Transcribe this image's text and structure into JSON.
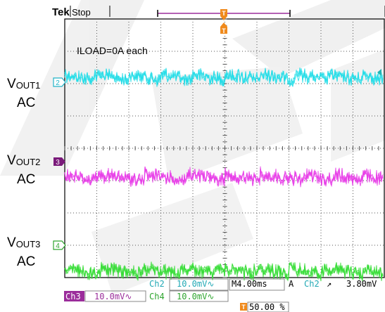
{
  "header": {
    "brand": "Tek",
    "run_state": "Stop"
  },
  "annotation": "ILOAD=0A each",
  "trigger": {
    "marker_glyph": "T",
    "color": "#f08a1c"
  },
  "channels": [
    {
      "id": "2",
      "label_main": "V",
      "label_sub": "OUT1",
      "label_coupling": "AC",
      "color": "#22dde8"
    },
    {
      "id": "3",
      "label_main": "V",
      "label_sub": "OUT2",
      "label_coupling": "AC",
      "color": "#e83ce8"
    },
    {
      "id": "4",
      "label_main": "V",
      "label_sub": "OUT3",
      "label_coupling": "AC",
      "color": "#36dd36"
    }
  ],
  "readouts": {
    "ch2_name": "Ch2",
    "ch2_scale": "10.0mV∿",
    "timebase": "M4.00ms",
    "acq_mode": "A",
    "trig_source": "Ch2",
    "trig_slope": "↗",
    "trig_level": "3.80mV",
    "ch3_name": "Ch3",
    "ch3_scale": "10.0mV∿",
    "ch4_name": "Ch4",
    "ch4_scale": "10.0mV∿",
    "trig_position": "50.00 %"
  },
  "chart_data": {
    "type": "line",
    "title": "",
    "x_divisions": 10,
    "y_divisions": 8,
    "x_per_div": "4.00ms",
    "y_per_div": "10.0mV",
    "grid": true,
    "series": [
      {
        "name": "Ch2",
        "step_divs": [
          0,
          0.9,
          2.0,
          3.0,
          4.0,
          5.0,
          6.1,
          7.2,
          8.2,
          9.3
        ],
        "level_div": 2.2
      },
      {
        "name": "Ch3",
        "step_divs": [
          0,
          0.9,
          2.5,
          3.8,
          5.0,
          6.1,
          7.5,
          8.4,
          9.3
        ],
        "level_div": -0.9
      },
      {
        "name": "Ch4",
        "step_divs": [
          0,
          1.1,
          2.4,
          3.6,
          4.7,
          5.9,
          7.0,
          8.1,
          9.3
        ],
        "level_div": -3.8
      }
    ]
  }
}
